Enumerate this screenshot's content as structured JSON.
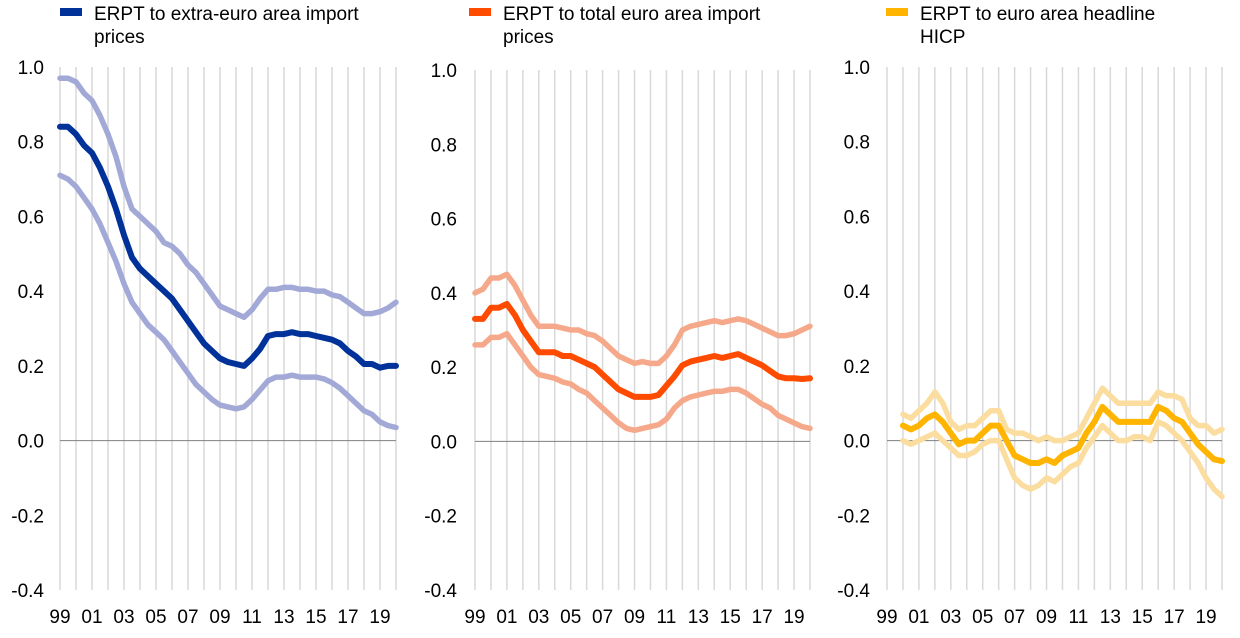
{
  "chart_data": [
    {
      "type": "line",
      "legend": [
        "ERPT to extra-euro area import",
        "prices"
      ],
      "color": "#003299",
      "band_color": "#a2a9d6",
      "x_ticks": [
        "99",
        "01",
        "03",
        "05",
        "07",
        "09",
        "11",
        "13",
        "15",
        "17",
        "19"
      ],
      "x_range": [
        1999,
        2020
      ],
      "ylim": [
        -0.4,
        1.0
      ],
      "y_ticks": [
        "1.0",
        "0.8",
        "0.6",
        "0.4",
        "0.2",
        "0.0",
        "-0.2",
        "-0.4"
      ],
      "series": [
        {
          "name": "upper",
          "x": [
            1999,
            1999.5,
            2000,
            2000.5,
            2001,
            2001.5,
            2002,
            2002.5,
            2003,
            2003.5,
            2004,
            2004.5,
            2005,
            2005.5,
            2006,
            2006.5,
            2007,
            2007.5,
            2008,
            2008.5,
            2009,
            2009.5,
            2010,
            2010.5,
            2011,
            2011.5,
            2012,
            2012.5,
            2013,
            2013.5,
            2014,
            2014.5,
            2015,
            2015.5,
            2016,
            2016.5,
            2017,
            2017.5,
            2018,
            2018.5,
            2019,
            2019.5,
            2020
          ],
          "values": [
            0.97,
            0.97,
            0.96,
            0.93,
            0.91,
            0.87,
            0.82,
            0.76,
            0.68,
            0.62,
            0.6,
            0.58,
            0.56,
            0.53,
            0.52,
            0.5,
            0.47,
            0.45,
            0.42,
            0.39,
            0.36,
            0.35,
            0.34,
            0.33,
            0.35,
            0.38,
            0.405,
            0.405,
            0.41,
            0.41,
            0.405,
            0.405,
            0.4,
            0.4,
            0.39,
            0.385,
            0.37,
            0.355,
            0.34,
            0.34,
            0.345,
            0.355,
            0.37
          ]
        },
        {
          "name": "point estimate",
          "x": [
            1999,
            1999.5,
            2000,
            2000.5,
            2001,
            2001.5,
            2002,
            2002.5,
            2003,
            2003.5,
            2004,
            2004.5,
            2005,
            2005.5,
            2006,
            2006.5,
            2007,
            2007.5,
            2008,
            2008.5,
            2009,
            2009.5,
            2010,
            2010.5,
            2011,
            2011.5,
            2012,
            2012.5,
            2013,
            2013.5,
            2014,
            2014.5,
            2015,
            2015.5,
            2016,
            2016.5,
            2017,
            2017.5,
            2018,
            2018.5,
            2019,
            2019.5,
            2020
          ],
          "values": [
            0.84,
            0.84,
            0.82,
            0.79,
            0.77,
            0.73,
            0.68,
            0.62,
            0.55,
            0.49,
            0.46,
            0.44,
            0.42,
            0.4,
            0.38,
            0.35,
            0.32,
            0.29,
            0.26,
            0.24,
            0.22,
            0.21,
            0.205,
            0.2,
            0.22,
            0.245,
            0.28,
            0.285,
            0.285,
            0.29,
            0.285,
            0.285,
            0.28,
            0.275,
            0.27,
            0.26,
            0.24,
            0.225,
            0.205,
            0.205,
            0.195,
            0.2,
            0.2
          ]
        },
        {
          "name": "lower",
          "x": [
            1999,
            1999.5,
            2000,
            2000.5,
            2001,
            2001.5,
            2002,
            2002.5,
            2003,
            2003.5,
            2004,
            2004.5,
            2005,
            2005.5,
            2006,
            2006.5,
            2007,
            2007.5,
            2008,
            2008.5,
            2009,
            2009.5,
            2010,
            2010.5,
            2011,
            2011.5,
            2012,
            2012.5,
            2013,
            2013.5,
            2014,
            2014.5,
            2015,
            2015.5,
            2016,
            2016.5,
            2017,
            2017.5,
            2018,
            2018.5,
            2019,
            2019.5,
            2020
          ],
          "values": [
            0.71,
            0.7,
            0.68,
            0.65,
            0.62,
            0.58,
            0.53,
            0.48,
            0.42,
            0.37,
            0.34,
            0.31,
            0.29,
            0.27,
            0.24,
            0.21,
            0.18,
            0.15,
            0.13,
            0.11,
            0.095,
            0.09,
            0.085,
            0.09,
            0.11,
            0.135,
            0.16,
            0.17,
            0.17,
            0.175,
            0.17,
            0.17,
            0.17,
            0.165,
            0.155,
            0.14,
            0.12,
            0.1,
            0.08,
            0.07,
            0.05,
            0.04,
            0.035
          ]
        }
      ]
    },
    {
      "type": "line",
      "legend": [
        "ERPT to total euro area import",
        "prices"
      ],
      "color": "#ff4b00",
      "band_color": "#f5a98a",
      "x_ticks": [
        "99",
        "01",
        "03",
        "05",
        "07",
        "09",
        "11",
        "13",
        "15",
        "17",
        "19"
      ],
      "x_range": [
        1999,
        2020
      ],
      "ylim": [
        -0.4,
        1.0
      ],
      "y_ticks": [
        "1.0",
        "0.8",
        "0.6",
        "0.4",
        "0.2",
        "0.0",
        "-0.2",
        "-0.4"
      ],
      "series": [
        {
          "name": "upper",
          "x": [
            1999,
            1999.5,
            2000,
            2000.5,
            2001,
            2001.5,
            2002,
            2002.5,
            2003,
            2003.5,
            2004,
            2004.5,
            2005,
            2005.5,
            2006,
            2006.5,
            2007,
            2007.5,
            2008,
            2008.5,
            2009,
            2009.5,
            2010,
            2010.5,
            2011,
            2011.5,
            2012,
            2012.5,
            2013,
            2013.5,
            2014,
            2014.5,
            2015,
            2015.5,
            2016,
            2016.5,
            2017,
            2017.5,
            2018,
            2018.5,
            2019,
            2019.5,
            2020
          ],
          "values": [
            0.4,
            0.41,
            0.44,
            0.44,
            0.45,
            0.42,
            0.38,
            0.34,
            0.31,
            0.31,
            0.31,
            0.305,
            0.3,
            0.3,
            0.29,
            0.285,
            0.27,
            0.25,
            0.23,
            0.22,
            0.21,
            0.215,
            0.21,
            0.21,
            0.23,
            0.26,
            0.3,
            0.31,
            0.315,
            0.32,
            0.325,
            0.32,
            0.325,
            0.33,
            0.325,
            0.315,
            0.305,
            0.295,
            0.285,
            0.285,
            0.29,
            0.3,
            0.31
          ]
        },
        {
          "name": "point estimate",
          "x": [
            1999,
            1999.5,
            2000,
            2000.5,
            2001,
            2001.5,
            2002,
            2002.5,
            2003,
            2003.5,
            2004,
            2004.5,
            2005,
            2005.5,
            2006,
            2006.5,
            2007,
            2007.5,
            2008,
            2008.5,
            2009,
            2009.5,
            2010,
            2010.5,
            2011,
            2011.5,
            2012,
            2012.5,
            2013,
            2013.5,
            2014,
            2014.5,
            2015,
            2015.5,
            2016,
            2016.5,
            2017,
            2017.5,
            2018,
            2018.5,
            2019,
            2019.5,
            2020
          ],
          "values": [
            0.33,
            0.33,
            0.36,
            0.36,
            0.37,
            0.34,
            0.3,
            0.27,
            0.24,
            0.24,
            0.24,
            0.23,
            0.23,
            0.22,
            0.21,
            0.2,
            0.18,
            0.16,
            0.14,
            0.13,
            0.12,
            0.12,
            0.12,
            0.125,
            0.15,
            0.175,
            0.205,
            0.215,
            0.22,
            0.225,
            0.23,
            0.225,
            0.23,
            0.235,
            0.225,
            0.215,
            0.205,
            0.19,
            0.175,
            0.17,
            0.17,
            0.168,
            0.17
          ]
        },
        {
          "name": "lower",
          "x": [
            1999,
            1999.5,
            2000,
            2000.5,
            2001,
            2001.5,
            2002,
            2002.5,
            2003,
            2003.5,
            2004,
            2004.5,
            2005,
            2005.5,
            2006,
            2006.5,
            2007,
            2007.5,
            2008,
            2008.5,
            2009,
            2009.5,
            2010,
            2010.5,
            2011,
            2011.5,
            2012,
            2012.5,
            2013,
            2013.5,
            2014,
            2014.5,
            2015,
            2015.5,
            2016,
            2016.5,
            2017,
            2017.5,
            2018,
            2018.5,
            2019,
            2019.5,
            2020
          ],
          "values": [
            0.26,
            0.26,
            0.28,
            0.28,
            0.29,
            0.26,
            0.23,
            0.2,
            0.18,
            0.175,
            0.17,
            0.16,
            0.155,
            0.14,
            0.13,
            0.11,
            0.09,
            0.07,
            0.05,
            0.035,
            0.03,
            0.035,
            0.04,
            0.045,
            0.06,
            0.09,
            0.11,
            0.12,
            0.125,
            0.13,
            0.135,
            0.135,
            0.14,
            0.14,
            0.13,
            0.115,
            0.1,
            0.09,
            0.07,
            0.06,
            0.05,
            0.04,
            0.035
          ]
        }
      ]
    },
    {
      "type": "line",
      "legend": [
        "ERPT to euro area headline",
        "HICP"
      ],
      "color": "#ffb400",
      "band_color": "#fbdda0",
      "x_ticks": [
        "99",
        "01",
        "03",
        "05",
        "07",
        "09",
        "11",
        "13",
        "15",
        "17",
        "19"
      ],
      "x_range": [
        1999,
        2020
      ],
      "ylim": [
        -0.4,
        1.0
      ],
      "y_ticks": [
        "1.0",
        "0.8",
        "0.6",
        "0.4",
        "0.2",
        "0.0",
        "-0.2",
        "-0.4"
      ],
      "series": [
        {
          "name": "upper",
          "x": [
            2000,
            2000.5,
            2001,
            2001.5,
            2002,
            2002.5,
            2003,
            2003.5,
            2004,
            2004.5,
            2005,
            2005.5,
            2006,
            2006.5,
            2007,
            2007.5,
            2008,
            2008.5,
            2009,
            2009.5,
            2010,
            2010.5,
            2011,
            2011.5,
            2012,
            2012.5,
            2013,
            2013.5,
            2014,
            2014.5,
            2015,
            2015.5,
            2016,
            2016.5,
            2017,
            2017.5,
            2018,
            2018.5,
            2019,
            2019.5,
            2020
          ],
          "values": [
            0.07,
            0.06,
            0.08,
            0.1,
            0.13,
            0.1,
            0.05,
            0.03,
            0.04,
            0.04,
            0.06,
            0.08,
            0.08,
            0.03,
            0.02,
            0.02,
            0.01,
            0.0,
            0.01,
            0.0,
            0.0,
            0.01,
            0.02,
            0.06,
            0.1,
            0.14,
            0.12,
            0.1,
            0.1,
            0.1,
            0.1,
            0.1,
            0.13,
            0.12,
            0.12,
            0.11,
            0.06,
            0.04,
            0.04,
            0.02,
            0.03
          ]
        },
        {
          "name": "point estimate",
          "x": [
            2000,
            2000.5,
            2001,
            2001.5,
            2002,
            2002.5,
            2003,
            2003.5,
            2004,
            2004.5,
            2005,
            2005.5,
            2006,
            2006.5,
            2007,
            2007.5,
            2008,
            2008.5,
            2009,
            2009.5,
            2010,
            2010.5,
            2011,
            2011.5,
            2012,
            2012.5,
            2013,
            2013.5,
            2014,
            2014.5,
            2015,
            2015.5,
            2016,
            2016.5,
            2017,
            2017.5,
            2018,
            2018.5,
            2019,
            2019.5,
            2020
          ],
          "values": [
            0.04,
            0.03,
            0.04,
            0.06,
            0.07,
            0.05,
            0.02,
            -0.01,
            0.0,
            0.0,
            0.02,
            0.04,
            0.04,
            0.0,
            -0.04,
            -0.05,
            -0.06,
            -0.06,
            -0.05,
            -0.06,
            -0.04,
            -0.03,
            -0.02,
            0.02,
            0.05,
            0.09,
            0.07,
            0.05,
            0.05,
            0.05,
            0.05,
            0.05,
            0.09,
            0.08,
            0.06,
            0.05,
            0.02,
            -0.01,
            -0.03,
            -0.05,
            -0.055
          ]
        },
        {
          "name": "lower",
          "x": [
            2000,
            2000.5,
            2001,
            2001.5,
            2002,
            2002.5,
            2003,
            2003.5,
            2004,
            2004.5,
            2005,
            2005.5,
            2006,
            2006.5,
            2007,
            2007.5,
            2008,
            2008.5,
            2009,
            2009.5,
            2010,
            2010.5,
            2011,
            2011.5,
            2012,
            2012.5,
            2013,
            2013.5,
            2014,
            2014.5,
            2015,
            2015.5,
            2016,
            2016.5,
            2017,
            2017.5,
            2018,
            2018.5,
            2019,
            2019.5,
            2020
          ],
          "values": [
            0.0,
            -0.01,
            0.0,
            0.01,
            0.02,
            0.0,
            -0.02,
            -0.04,
            -0.04,
            -0.03,
            -0.01,
            0.0,
            0.0,
            -0.05,
            -0.1,
            -0.12,
            -0.13,
            -0.12,
            -0.1,
            -0.11,
            -0.09,
            -0.07,
            -0.06,
            -0.02,
            0.01,
            0.04,
            0.02,
            0.0,
            0.0,
            0.01,
            0.01,
            0.0,
            0.05,
            0.04,
            0.02,
            0.0,
            -0.03,
            -0.06,
            -0.1,
            -0.13,
            -0.15
          ]
        }
      ]
    }
  ]
}
